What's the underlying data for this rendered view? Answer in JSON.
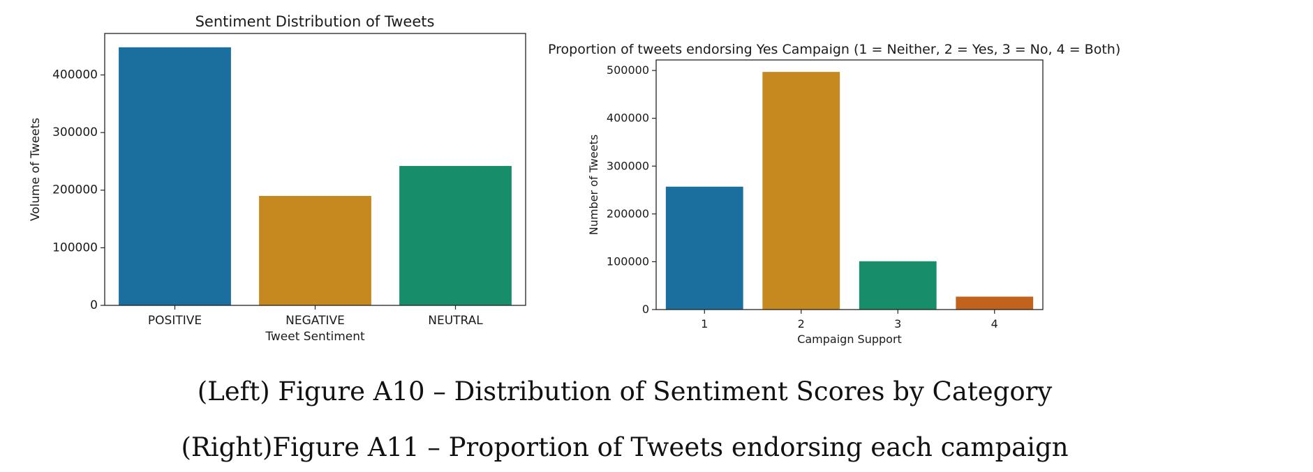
{
  "chart_data": [
    {
      "type": "bar",
      "title": "Sentiment Distribution of Tweets",
      "xlabel": "Tweet Sentiment",
      "ylabel": "Volume of Tweets",
      "categories": [
        "POSITIVE",
        "NEGATIVE",
        "NEUTRAL"
      ],
      "values": [
        448000,
        190000,
        242000
      ],
      "colors": [
        "#1a6f9e",
        "#c68920",
        "#178d6a"
      ],
      "ylim": [
        0,
        472000
      ],
      "yticks": [
        0,
        100000,
        200000,
        300000,
        400000
      ],
      "ytick_labels": [
        "0",
        "100000",
        "200000",
        "300000",
        "400000"
      ],
      "grid": false,
      "legend": "none"
    },
    {
      "type": "bar",
      "title": "Proportion of tweets endorsing Yes Campaign (1 = Neither, 2 = Yes, 3 = No, 4 = Both)",
      "xlabel": "Campaign Support",
      "ylabel": "Number of Tweets",
      "categories": [
        "1",
        "2",
        "3",
        "4"
      ],
      "values": [
        257000,
        497000,
        101000,
        27000
      ],
      "colors": [
        "#1a6f9e",
        "#c68920",
        "#178d6a",
        "#c1621d"
      ],
      "ylim": [
        0,
        522000
      ],
      "yticks": [
        0,
        100000,
        200000,
        300000,
        400000,
        500000
      ],
      "ytick_labels": [
        "0",
        "100000",
        "200000",
        "300000",
        "400000",
        "500000"
      ],
      "grid": false,
      "legend": "none"
    }
  ],
  "captions": {
    "left": "(Left) Figure A10 – Distribution of Sentiment Scores by Category",
    "right": "(Right)Figure A11 – Proportion of Tweets endorsing each campaign"
  }
}
